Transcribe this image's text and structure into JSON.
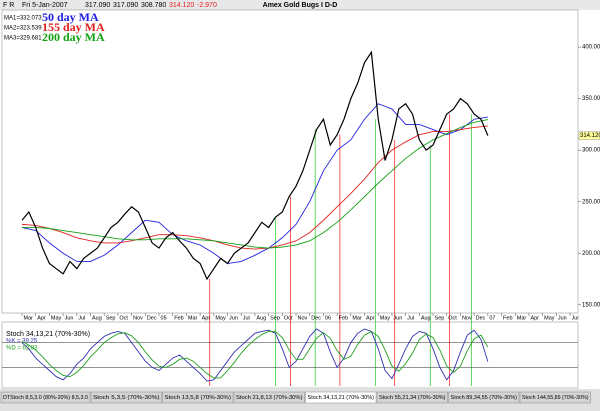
{
  "chart_data": [
    {
      "type": "line",
      "title": "Amex Gold Bugs I D-D",
      "header": {
        "menu": "F R",
        "date": "Fri 5-Jan-2007",
        "open": "317.090",
        "high": "317.090",
        "low": "308.780",
        "close": "314.120",
        "change": "-2.970"
      },
      "x": [
        0,
        0.5,
        1,
        1.5,
        2,
        2.5,
        3,
        3.5,
        4,
        4.5,
        5,
        5.5,
        6,
        6.5,
        7,
        7.5,
        8,
        8.5,
        9,
        9.5,
        10,
        10.5,
        11,
        11.5,
        12,
        12.5,
        13,
        13.5,
        14,
        14.5,
        15,
        15.5,
        16,
        16.5,
        17,
        17.5,
        18,
        18.5,
        19,
        19.5,
        20,
        20.5,
        21,
        21.5,
        22,
        22.5,
        23,
        23.5,
        24,
        24.5,
        25,
        25.5,
        26,
        26.5,
        27,
        27.5,
        28,
        28.5,
        29,
        29.5,
        30,
        30.5,
        31,
        31.5,
        32,
        32.5,
        33,
        33.5,
        34
      ],
      "values": [
        232,
        240,
        225,
        205,
        190,
        185,
        180,
        192,
        185,
        195,
        200,
        205,
        215,
        225,
        230,
        238,
        245,
        240,
        225,
        210,
        205,
        215,
        220,
        212,
        205,
        195,
        190,
        175,
        185,
        195,
        190,
        200,
        205,
        210,
        220,
        230,
        225,
        235,
        240,
        255,
        265,
        280,
        300,
        320,
        330,
        305,
        315,
        330,
        350,
        365,
        385,
        395,
        330,
        290,
        310,
        340,
        345,
        335,
        310,
        300,
        305,
        320,
        335,
        340,
        350,
        345,
        335,
        330,
        314.12
      ],
      "color": "#000000",
      "series": [
        {
          "name": "50 day MA",
          "label": "MA1=332.073",
          "color": "#2020e0",
          "x": [
            0,
            1,
            2,
            3,
            4,
            5,
            6,
            7,
            8,
            9,
            10,
            11,
            12,
            13,
            14,
            15,
            16,
            17,
            18,
            19,
            20,
            21,
            22,
            23,
            24,
            25,
            26,
            27,
            28,
            29,
            30,
            31,
            32,
            33,
            34
          ],
          "values": [
            225,
            222,
            210,
            200,
            192,
            192,
            198,
            208,
            220,
            232,
            230,
            218,
            212,
            208,
            200,
            190,
            192,
            198,
            205,
            215,
            228,
            250,
            280,
            300,
            310,
            330,
            345,
            340,
            325,
            325,
            320,
            315,
            320,
            330,
            332.073
          ]
        },
        {
          "name": "155 day MA",
          "label": "MA2=323.539",
          "color": "#e02020",
          "x": [
            0,
            1,
            2,
            3,
            4,
            5,
            6,
            7,
            8,
            9,
            10,
            11,
            12,
            13,
            14,
            15,
            16,
            17,
            18,
            19,
            20,
            21,
            22,
            23,
            24,
            25,
            26,
            27,
            28,
            29,
            30,
            31,
            32,
            33,
            34
          ],
          "values": [
            228,
            227,
            224,
            220,
            215,
            212,
            210,
            210,
            212,
            215,
            218,
            218,
            217,
            215,
            212,
            208,
            205,
            204,
            205,
            208,
            212,
            220,
            232,
            245,
            258,
            272,
            288,
            300,
            308,
            315,
            318,
            318,
            320,
            322,
            323.539
          ]
        },
        {
          "name": "200 day MA",
          "label": "MA3=329.681",
          "color": "#10a010",
          "x": [
            0,
            1,
            2,
            3,
            4,
            5,
            6,
            7,
            8,
            9,
            10,
            11,
            12,
            13,
            14,
            15,
            16,
            17,
            18,
            19,
            20,
            21,
            22,
            23,
            24,
            25,
            26,
            27,
            28,
            29,
            30,
            31,
            32,
            33,
            34
          ],
          "values": [
            225,
            225,
            224,
            222,
            220,
            218,
            216,
            214,
            213,
            213,
            214,
            214,
            214,
            213,
            212,
            210,
            208,
            206,
            205,
            206,
            208,
            212,
            220,
            230,
            242,
            255,
            268,
            280,
            292,
            302,
            310,
            316,
            322,
            327,
            329.681
          ]
        }
      ],
      "last_label": "314.120",
      "xlim": [
        -1.46,
        40.58
      ],
      "xticks": [
        {
          "value": 0,
          "label": "Mar"
        },
        {
          "value": 1,
          "label": "Apr"
        },
        {
          "value": 2,
          "label": "May"
        },
        {
          "value": 3,
          "label": "Jun"
        },
        {
          "value": 4,
          "label": "Jul"
        },
        {
          "value": 5,
          "label": "Aug"
        },
        {
          "value": 6,
          "label": "Sep"
        },
        {
          "value": 7,
          "label": "Oct"
        },
        {
          "value": 8,
          "label": "Nov"
        },
        {
          "value": 9,
          "label": "Dec"
        },
        {
          "value": 10,
          "label": "05"
        },
        {
          "value": 11,
          "label": "Feb"
        },
        {
          "value": 12,
          "label": "Mar"
        },
        {
          "value": 13,
          "label": "Apr"
        },
        {
          "value": 14,
          "label": "May"
        },
        {
          "value": 15,
          "label": "Jun"
        },
        {
          "value": 16,
          "label": "Jul"
        },
        {
          "value": 17,
          "label": "Aug"
        },
        {
          "value": 18,
          "label": "Sep"
        },
        {
          "value": 19,
          "label": "Oct"
        },
        {
          "value": 20,
          "label": "Nov"
        },
        {
          "value": 21,
          "label": "Dec"
        },
        {
          "value": 22,
          "label": "06"
        },
        {
          "value": 23,
          "label": "Feb"
        },
        {
          "value": 24,
          "label": "Mar"
        },
        {
          "value": 25,
          "label": "Apr"
        },
        {
          "value": 26,
          "label": "May"
        },
        {
          "value": 27,
          "label": "Jun"
        },
        {
          "value": 28,
          "label": "Jul"
        },
        {
          "value": 29,
          "label": "Aug"
        },
        {
          "value": 30,
          "label": "Sep"
        },
        {
          "value": 31,
          "label": "Oct"
        },
        {
          "value": 32,
          "label": "Nov"
        },
        {
          "value": 33,
          "label": "Dec"
        },
        {
          "value": 34,
          "label": "07"
        },
        {
          "value": 35,
          "label": "Feb"
        },
        {
          "value": 36,
          "label": "Mar"
        },
        {
          "value": 37,
          "label": "Apr"
        },
        {
          "value": 38,
          "label": "May"
        },
        {
          "value": 39,
          "label": "Jun"
        },
        {
          "value": 40,
          "label": "Jul"
        }
      ],
      "ylim": [
        142,
        436
      ],
      "yticks": [
        {
          "value": 150,
          "label": "150.000"
        },
        {
          "value": 200,
          "label": "200.000"
        },
        {
          "value": 250,
          "label": "250.000"
        },
        {
          "value": 300,
          "label": "300.000"
        },
        {
          "value": 350,
          "label": "350.000"
        },
        {
          "value": 400,
          "label": "400.000"
        }
      ],
      "markers": [
        {
          "color": "#ff3030",
          "x": [
            13.7,
            19.6,
            23.2,
            27.2,
            31.2
          ]
        },
        {
          "color": "#40d040",
          "x": [
            18.5,
            21.4,
            25.8,
            29.8,
            32.8
          ]
        }
      ]
    },
    {
      "type": "line",
      "title": "Stoch 34,13,21 (70%-30%)",
      "series": [
        {
          "label": "%K = 39.25",
          "color": "#3030b0",
          "values": [
            70,
            60,
            45,
            35,
            25,
            15,
            10,
            20,
            35,
            45,
            60,
            70,
            80,
            85,
            88,
            85,
            70,
            55,
            40,
            30,
            25,
            35,
            45,
            50,
            40,
            30,
            20,
            8,
            10,
            25,
            40,
            55,
            65,
            75,
            85,
            88,
            90,
            85,
            60,
            30,
            40,
            60,
            80,
            92,
            85,
            55,
            30,
            45,
            70,
            85,
            92,
            88,
            60,
            25,
            12,
            35,
            60,
            80,
            88,
            85,
            60,
            30,
            10,
            25,
            55,
            82,
            90,
            75,
            39.25
          ]
        },
        {
          "label": "%D = 62.83",
          "color": "#20a020",
          "values": [
            72,
            66,
            58,
            47,
            35,
            25,
            17,
            15,
            22,
            33,
            47,
            58,
            70,
            78,
            84,
            86,
            81,
            70,
            55,
            42,
            32,
            30,
            35,
            43,
            45,
            40,
            30,
            20,
            13,
            13,
            25,
            38,
            53,
            65,
            75,
            83,
            88,
            88,
            78,
            58,
            43,
            43,
            60,
            77,
            86,
            77,
            57,
            43,
            48,
            67,
            82,
            88,
            80,
            58,
            32,
            24,
            36,
            53,
            75,
            84,
            78,
            58,
            32,
            22,
            32,
            57,
            76,
            82,
            62.83
          ]
        }
      ],
      "ylim": [
        0,
        100
      ],
      "levels": [
        30,
        70
      ]
    }
  ],
  "tabs": [
    "DTStoch 8,5,3.0 (80%-20%) 8,5,3.0",
    "Stoch 5,3,5 (70%-30%)",
    "Stoch 13,5,8 (70%-30%)",
    "Stoch 21,8,13 (70%-30%)",
    "Stoch 34,13,21 (70%-30%)",
    "Stoch 55,21,34 (70%-30%)",
    "Stoch 89,34,55 (70%-30%)",
    "Stoch 144,55,89 (70%-30%)"
  ]
}
